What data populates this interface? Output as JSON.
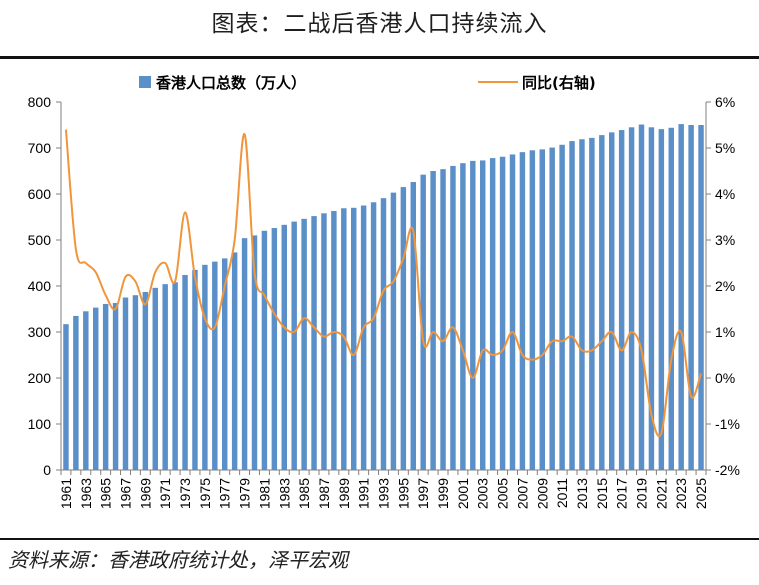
{
  "title": "图表：二战后香港人口持续流入",
  "source": "资料来源：香港政府统计处，泽平宏观",
  "colors": {
    "bar": "#5b8fc8",
    "line": "#f0953c",
    "axis": "#7f7f7f"
  },
  "chart_data": {
    "type": "bar",
    "x": [
      "1961",
      "1962",
      "1963",
      "1964",
      "1965",
      "1966",
      "1967",
      "1968",
      "1969",
      "1970",
      "1971",
      "1972",
      "1973",
      "1974",
      "1975",
      "1976",
      "1977",
      "1978",
      "1979",
      "1980",
      "1981",
      "1982",
      "1983",
      "1984",
      "1985",
      "1986",
      "1987",
      "1988",
      "1989",
      "1990",
      "1991",
      "1992",
      "1993",
      "1994",
      "1995",
      "1996",
      "1997",
      "1998",
      "1999",
      "2000",
      "2001",
      "2002",
      "2003",
      "2004",
      "2005",
      "2006",
      "2007",
      "2008",
      "2009",
      "2010",
      "2011",
      "2012",
      "2013",
      "2014",
      "2015",
      "2016",
      "2017",
      "2018",
      "2019",
      "2020",
      "2021",
      "2022",
      "2023",
      "2024",
      "2025"
    ],
    "series": [
      {
        "name": "香港人口总数（万人）",
        "type": "bar",
        "axis": "left",
        "values": [
          317,
          335,
          345,
          353,
          361,
          363,
          375,
          380,
          387,
          396,
          404,
          408,
          424,
          435,
          446,
          453,
          460,
          473,
          504,
          510,
          520,
          526,
          533,
          540,
          546,
          552,
          558,
          563,
          569,
          570,
          575,
          582,
          591,
          603,
          615,
          626,
          642,
          650,
          654,
          661,
          667,
          672,
          673,
          678,
          681,
          686,
          691,
          695,
          697,
          701,
          707,
          715,
          719,
          722,
          728,
          734,
          739,
          745,
          751,
          745,
          741,
          744,
          752,
          750,
          750
        ]
      },
      {
        "name": "同比(右轴)",
        "type": "line",
        "axis": "right",
        "values": [
          5.4,
          2.8,
          2.5,
          2.3,
          1.8,
          1.5,
          2.2,
          2.1,
          1.6,
          2.3,
          2.5,
          2.1,
          3.6,
          2.2,
          1.3,
          1.1,
          2.0,
          3.0,
          5.3,
          2.3,
          1.8,
          1.4,
          1.1,
          1.0,
          1.3,
          1.1,
          0.9,
          1.0,
          0.9,
          0.5,
          1.1,
          1.3,
          1.9,
          2.1,
          2.6,
          3.2,
          0.8,
          1.0,
          0.8,
          1.1,
          0.6,
          0.0,
          0.6,
          0.5,
          0.6,
          1.0,
          0.5,
          0.4,
          0.5,
          0.8,
          0.8,
          0.9,
          0.6,
          0.6,
          0.8,
          1.0,
          0.6,
          1.0,
          0.6,
          -0.8,
          -1.2,
          0.4,
          1.0,
          -0.4,
          0.1
        ]
      }
    ],
    "yleft": {
      "min": 0,
      "max": 800,
      "ticks": [
        "0",
        "100",
        "200",
        "300",
        "400",
        "500",
        "600",
        "700",
        "800"
      ]
    },
    "yright": {
      "min": -2,
      "max": 6,
      "ticks": [
        "-2%",
        "-1%",
        "0%",
        "1%",
        "2%",
        "3%",
        "4%",
        "5%",
        "6%"
      ]
    },
    "legend_position": "top",
    "grid": false
  }
}
